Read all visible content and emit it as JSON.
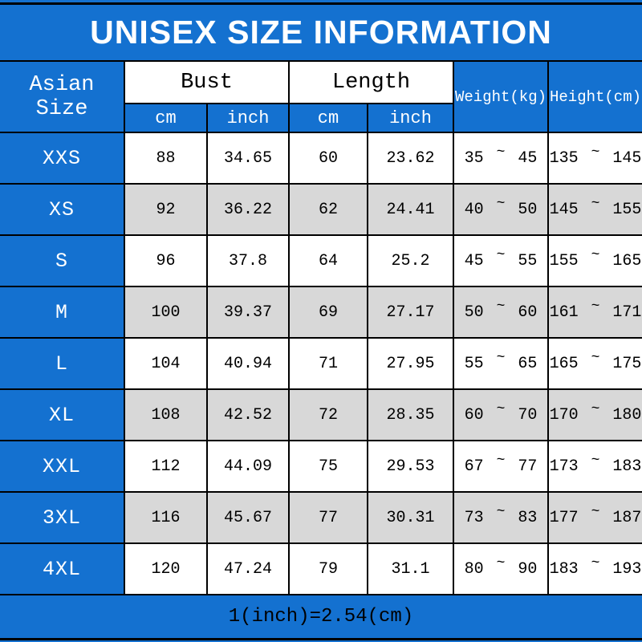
{
  "title": "UNISEX SIZE INFORMATION",
  "table": {
    "corner": "Asian Size",
    "groups": [
      {
        "label": "Bust",
        "sub": [
          "cm",
          "inch"
        ]
      },
      {
        "label": "Length",
        "sub": [
          "cm",
          "inch"
        ]
      }
    ],
    "weight_header": "Weight(kg)",
    "height_header": "Height(cm)"
  },
  "footnote": "1(inch)=2.54(cm)",
  "colors": {
    "background_blue": "#1471d0",
    "row_gray": "#d8d8d8",
    "row_white": "#ffffff",
    "header_text": "#ffffff",
    "body_text": "#000000",
    "grid_line": "#000000"
  },
  "chart_data": {
    "type": "table",
    "title": "UNISEX SIZE INFORMATION",
    "columns": [
      "Asian Size",
      "Bust cm",
      "Bust inch",
      "Length cm",
      "Length inch",
      "Weight(kg)",
      "Height(cm)"
    ],
    "rows": [
      [
        "XXS",
        "88",
        "34.65",
        "60",
        "23.62",
        "35~45",
        "135~145"
      ],
      [
        "XS",
        "92",
        "36.22",
        "62",
        "24.41",
        "40~50",
        "145~155"
      ],
      [
        "S",
        "96",
        "37.8",
        "64",
        "25.2",
        "45~55",
        "155~165"
      ],
      [
        "M",
        "100",
        "39.37",
        "69",
        "27.17",
        "50~60",
        "161~171"
      ],
      [
        "L",
        "104",
        "40.94",
        "71",
        "27.95",
        "55~65",
        "165~175"
      ],
      [
        "XL",
        "108",
        "42.52",
        "72",
        "28.35",
        "60~70",
        "170~180"
      ],
      [
        "XXL",
        "112",
        "44.09",
        "75",
        "29.53",
        "67~77",
        "173~183"
      ],
      [
        "3XL",
        "116",
        "45.67",
        "77",
        "30.31",
        "73~83",
        "177~187"
      ],
      [
        "4XL",
        "120",
        "47.24",
        "79",
        "31.1",
        "80~90",
        "183~193"
      ]
    ],
    "footnote": "1(inch)=2.54(cm)"
  }
}
